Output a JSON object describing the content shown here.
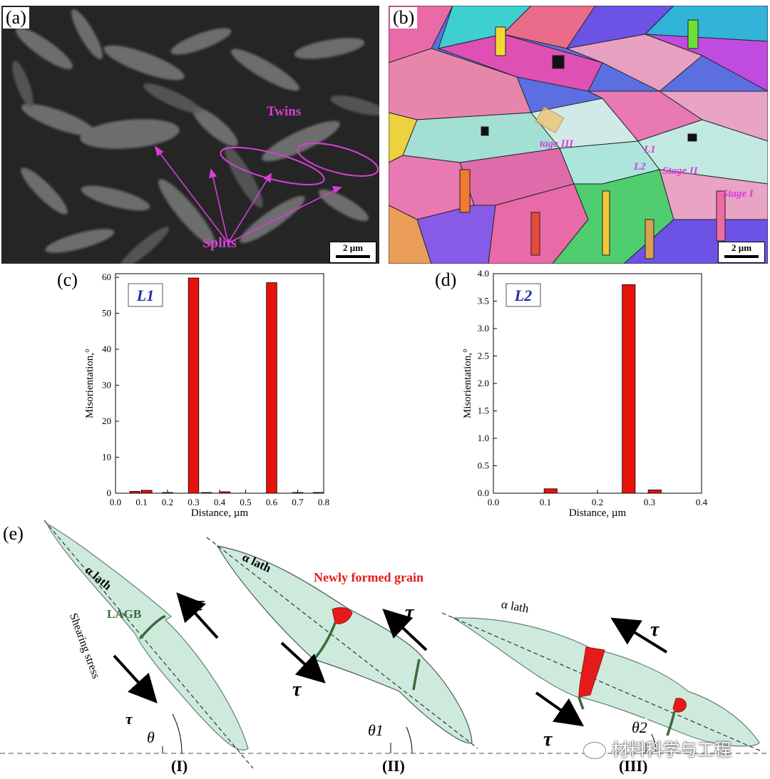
{
  "panels": {
    "a": {
      "label": "(a)",
      "twins": "Twins",
      "splits": "Splits",
      "scale": "2 µm"
    },
    "b": {
      "label": "(b)",
      "scale": "2 µm",
      "l1": "L1",
      "l2": "L2",
      "stage1": "Stage I",
      "stage2": "Stage II",
      "stage3": "tage III"
    },
    "c": {
      "label": "(c)"
    },
    "d": {
      "label": "(d)"
    },
    "e": {
      "label": "(e)",
      "alpha1": "α lath",
      "alpha2": "α lath",
      "alpha3": "α lath",
      "lagb": "LAGB",
      "shear": "Shearing stress",
      "tau": "τ",
      "new_grain": "Newly formed grain",
      "theta": "θ",
      "theta1": "θ1",
      "theta2": "θ2",
      "stage_i": "(I)",
      "stage_ii": "(II)",
      "stage_iii": "(III)",
      "watermark": "材料科学与工程"
    }
  },
  "chart_data": [
    {
      "type": "bar",
      "title": "L1",
      "xlabel": "Distance, µm",
      "ylabel": "Misorientation,°",
      "xlim": [
        0,
        0.8
      ],
      "ylim": [
        0,
        61
      ],
      "xticks": [
        "0.0",
        "0.1",
        "0.2",
        "0.3",
        "0.4",
        "0.5",
        "0.6",
        "0.7",
        "0.8"
      ],
      "yticks": [
        "0",
        "10",
        "20",
        "30",
        "40",
        "50",
        "60"
      ],
      "x": [
        0.075,
        0.12,
        0.2,
        0.3,
        0.35,
        0.42,
        0.6,
        0.7,
        0.78
      ],
      "values": [
        0.5,
        0.8,
        0.2,
        59.8,
        0.2,
        0.4,
        58.5,
        0.2,
        0.2
      ],
      "color": "#e8120c"
    },
    {
      "type": "bar",
      "title": "L2",
      "xlabel": "Distance, µm",
      "ylabel": "Misorientation,°",
      "xlim": [
        0,
        0.4
      ],
      "ylim": [
        0,
        4.0
      ],
      "xticks": [
        "0.0",
        "0.1",
        "0.2",
        "0.3",
        "0.4"
      ],
      "yticks": [
        "0.0",
        "0.5",
        "1.0",
        "1.5",
        "2.0",
        "2.5",
        "3.0",
        "3.5",
        "4.0"
      ],
      "x": [
        0.11,
        0.26,
        0.31
      ],
      "values": [
        0.08,
        3.8,
        0.06
      ],
      "color": "#e8120c"
    }
  ],
  "colors": {
    "accent": "#d63fd6",
    "bar": "#e8120c",
    "lath": "#cdeadd",
    "grain": "#e51b1b",
    "lagb": "#3a6b3a",
    "titleblue": "#1a2db0"
  }
}
